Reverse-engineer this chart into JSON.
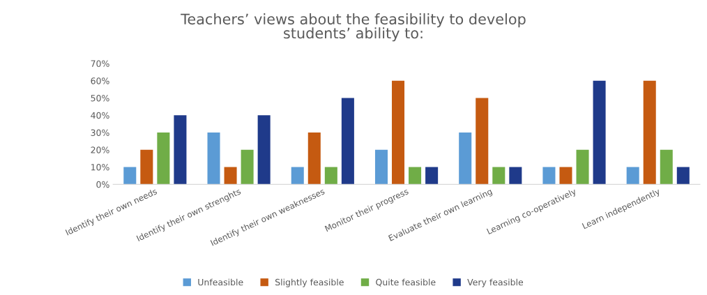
{
  "chart_data": {
    "type": "bar",
    "title": "Teachers’ views about the feasibility to develop\nstudents’ ability to:",
    "categories": [
      "Identify their own needs",
      "Identify their own strenghts",
      "Identify their own weaknesses",
      "Monitor their progress",
      "Evaluate their own learning",
      "Learning co-operatively",
      "Learn independently"
    ],
    "series": [
      {
        "name": "Unfeasible",
        "color": "#5b9bd5",
        "values": [
          10,
          30,
          10,
          20,
          30,
          10,
          10
        ]
      },
      {
        "name": "Slightly feasible",
        "color": "#c55a11",
        "values": [
          20,
          10,
          30,
          60,
          50,
          10,
          60
        ]
      },
      {
        "name": "Quite feasible",
        "color": "#70ad47",
        "values": [
          30,
          20,
          10,
          10,
          10,
          20,
          20
        ]
      },
      {
        "name": "Very feasible",
        "color": "#1f3a8a",
        "values": [
          40,
          40,
          50,
          10,
          10,
          60,
          10
        ]
      }
    ],
    "ylim": [
      0,
      70
    ],
    "yticks": [
      {
        "value": 0,
        "label": "0%"
      },
      {
        "value": 10,
        "label": "10%"
      },
      {
        "value": 20,
        "label": "20%"
      },
      {
        "value": 30,
        "label": "30%"
      },
      {
        "value": 40,
        "label": "40%"
      },
      {
        "value": 50,
        "label": "50%"
      },
      {
        "value": 60,
        "label": "60%"
      },
      {
        "value": 70,
        "label": "70%"
      }
    ],
    "grid": false,
    "legend": "bottom"
  }
}
